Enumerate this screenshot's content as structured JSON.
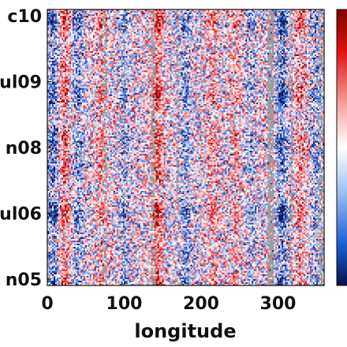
{
  "chart_data": {
    "type": "heatmap",
    "title": "",
    "xlabel": "longitude",
    "ylabel": "",
    "xlim": [
      0,
      360
    ],
    "x_ticks": [
      0,
      100,
      200,
      300
    ],
    "x_tick_labels": [
      "0",
      "100",
      "200",
      "300"
    ],
    "y_tick_labels": [
      "c10",
      "ul09",
      "n08",
      "ul06",
      "n05"
    ],
    "y_tick_order": "top-to-bottom",
    "grid": true,
    "colormap": "diverging blue-white-red",
    "missing_color": "#9b9b9b",
    "colorbar": "right, partially visible",
    "bands": [
      {
        "lon": 8,
        "sign": -1,
        "strength": 0.9
      },
      {
        "lon": 22,
        "sign": 1,
        "strength": 0.8
      },
      {
        "lon": 40,
        "sign": -1,
        "strength": 0.6
      },
      {
        "lon": 70,
        "sign": 1,
        "strength": 0.5
      },
      {
        "lon": 100,
        "sign": -1,
        "strength": 0.5
      },
      {
        "lon": 143,
        "sign": 1,
        "strength": 0.95
      },
      {
        "lon": 180,
        "sign": -1,
        "strength": 0.6
      },
      {
        "lon": 215,
        "sign": 1,
        "strength": 0.5
      },
      {
        "lon": 245,
        "sign": 1,
        "strength": 0.4
      },
      {
        "lon": 265,
        "sign": -1,
        "strength": 0.4
      },
      {
        "lon": 305,
        "sign": -1,
        "strength": 0.95
      },
      {
        "lon": 330,
        "sign": 1,
        "strength": 0.55
      },
      {
        "lon": 350,
        "sign": -1,
        "strength": 0.5
      }
    ],
    "missing_columns": [
      {
        "lon": 75,
        "width": 5,
        "frac": 0.35
      },
      {
        "lon": 138,
        "width": 6,
        "frac": 0.5
      },
      {
        "lon": 170,
        "width": 4,
        "frac": 0.3
      },
      {
        "lon": 290,
        "width": 9,
        "frac": 0.75
      },
      {
        "lon": 318,
        "width": 4,
        "frac": 0.3
      },
      {
        "lon": 355,
        "width": 5,
        "frac": 0.45
      }
    ]
  }
}
